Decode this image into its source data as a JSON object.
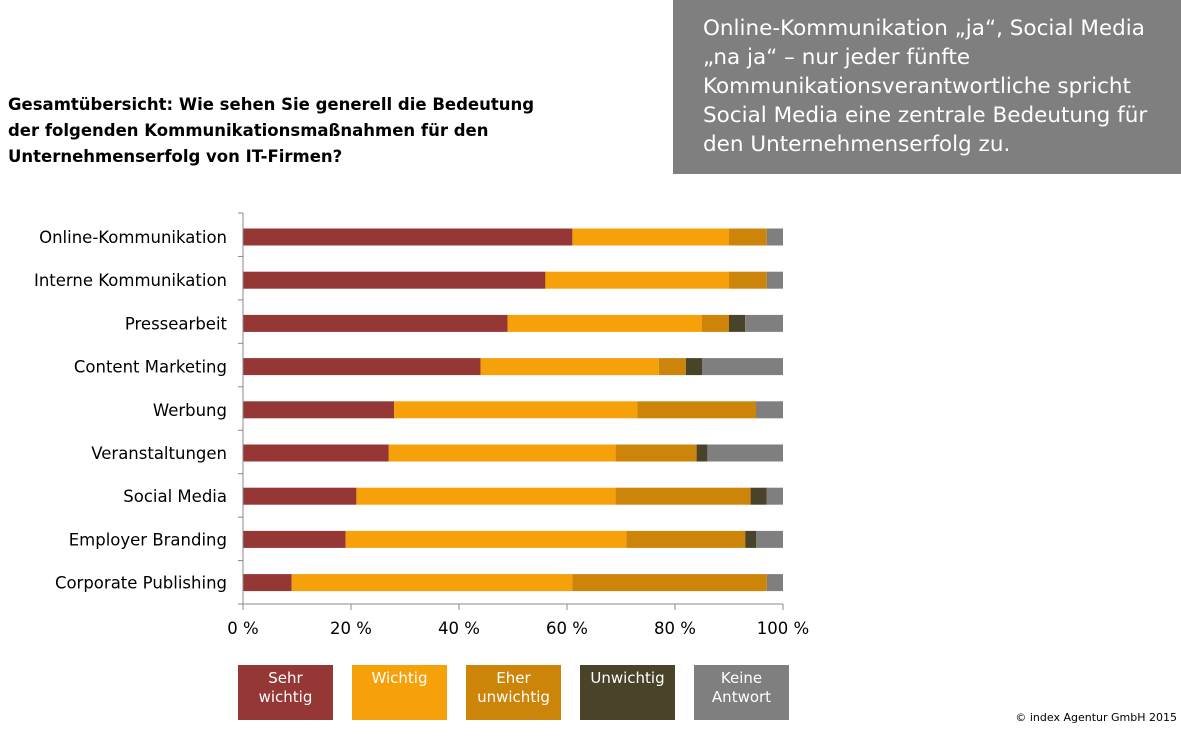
{
  "question": "Gesamtübersicht: Wie sehen Sie generell die Bedeutung der folgenden Kommunikationsmaßnahmen für den Unternehmenserfolg von IT-Firmen?",
  "callout": "Online-Kommunikation „ja“, Social Media „na ja“ – nur jeder fünfte Kommunikationsverantwortliche spricht Social Media eine zentrale Bedeutung für den Unternehmenserfolg zu.",
  "copyright": "© index Agentur GmbH 2015",
  "legend": [
    {
      "label": "Sehr\nwichtig",
      "color": "#953735"
    },
    {
      "label": "Wichtig",
      "color": "#f6a10a"
    },
    {
      "label": "Eher\nunwichtig",
      "color": "#cc8409"
    },
    {
      "label": "Unwichtig",
      "color": "#494429"
    },
    {
      "label": "Keine\nAntwort",
      "color": "#7f7f7f"
    }
  ],
  "chart_data": {
    "type": "bar",
    "orientation": "horizontal",
    "stacked": true,
    "categories": [
      "Online-Kommunikation",
      "Interne Kommunikation",
      "Pressearbeit",
      "Content Marketing",
      "Werbung",
      "Veranstaltungen",
      "Social Media",
      "Employer Branding",
      "Corporate Publishing"
    ],
    "series": [
      {
        "name": "Sehr wichtig",
        "color": "#953735",
        "values": [
          61,
          56,
          49,
          44,
          28,
          27,
          21,
          19,
          9
        ]
      },
      {
        "name": "Wichtig",
        "color": "#f6a10a",
        "values": [
          29,
          34,
          36,
          33,
          45,
          42,
          48,
          52,
          52
        ]
      },
      {
        "name": "Eher unwichtig",
        "color": "#cc8409",
        "values": [
          7,
          7,
          5,
          5,
          22,
          15,
          25,
          22,
          36
        ]
      },
      {
        "name": "Unwichtig",
        "color": "#494429",
        "values": [
          0,
          0,
          3,
          3,
          0,
          2,
          3,
          2,
          0
        ]
      },
      {
        "name": "Keine Antwort",
        "color": "#7f7f7f",
        "values": [
          3,
          3,
          7,
          15,
          5,
          14,
          3,
          5,
          3
        ]
      }
    ],
    "xlim": [
      0,
      100
    ],
    "xticks": [
      "0 %",
      "20 %",
      "40 %",
      "60 %",
      "80 %",
      "100 %"
    ],
    "grid": false,
    "legend_position": "bottom"
  }
}
